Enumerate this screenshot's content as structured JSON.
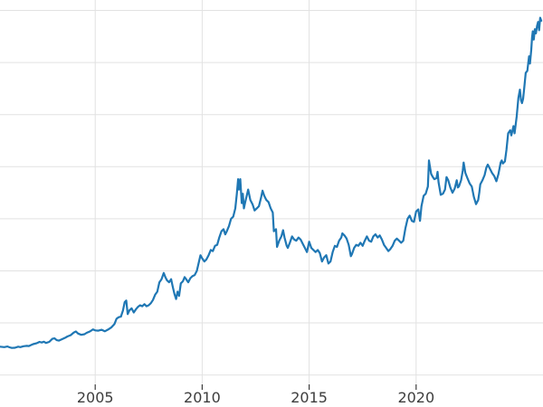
{
  "chart_data": {
    "type": "line",
    "title": "",
    "xlabel": "",
    "ylabel": "",
    "legend": "none",
    "grid": true,
    "line_color": "#1f77b4",
    "grid_color": "#e2e2e2",
    "tick_color": "#3d3d3d",
    "background_color": "#ffffff",
    "xlim": [
      2000.55,
      2025.93
    ],
    "ylim": [
      -90,
      3600
    ],
    "y_gridlines": [
      0,
      500,
      1000,
      1500,
      2000,
      2500,
      3000,
      3500
    ],
    "x_ticks": [
      {
        "label": "2005",
        "value": 2005
      },
      {
        "label": "2010",
        "value": 2010
      },
      {
        "label": "2015",
        "value": 2015
      },
      {
        "label": "2020",
        "value": 2020
      }
    ],
    "points": [
      [
        2000.55,
        272
      ],
      [
        2000.75,
        268
      ],
      [
        2000.9,
        274
      ],
      [
        2001.0,
        266
      ],
      [
        2001.1,
        260
      ],
      [
        2001.25,
        262
      ],
      [
        2001.4,
        272
      ],
      [
        2001.5,
        268
      ],
      [
        2001.65,
        276
      ],
      [
        2001.8,
        280
      ],
      [
        2001.9,
        278
      ],
      [
        2002.0,
        288
      ],
      [
        2002.1,
        296
      ],
      [
        2002.25,
        304
      ],
      [
        2002.4,
        318
      ],
      [
        2002.5,
        312
      ],
      [
        2002.6,
        320
      ],
      [
        2002.7,
        308
      ],
      [
        2002.85,
        318
      ],
      [
        2003.0,
        348
      ],
      [
        2003.1,
        352
      ],
      [
        2003.2,
        335
      ],
      [
        2003.3,
        330
      ],
      [
        2003.45,
        344
      ],
      [
        2003.6,
        358
      ],
      [
        2003.7,
        370
      ],
      [
        2003.85,
        382
      ],
      [
        2004.0,
        408
      ],
      [
        2004.1,
        418
      ],
      [
        2004.2,
        398
      ],
      [
        2004.35,
        386
      ],
      [
        2004.5,
        392
      ],
      [
        2004.6,
        405
      ],
      [
        2004.75,
        418
      ],
      [
        2004.9,
        438
      ],
      [
        2005.0,
        428
      ],
      [
        2005.15,
        426
      ],
      [
        2005.3,
        434
      ],
      [
        2005.45,
        420
      ],
      [
        2005.6,
        436
      ],
      [
        2005.75,
        456
      ],
      [
        2005.9,
        490
      ],
      [
        2006.0,
        540
      ],
      [
        2006.1,
        555
      ],
      [
        2006.2,
        560
      ],
      [
        2006.3,
        620
      ],
      [
        2006.38,
        700
      ],
      [
        2006.45,
        715
      ],
      [
        2006.52,
        585
      ],
      [
        2006.6,
        620
      ],
      [
        2006.7,
        640
      ],
      [
        2006.8,
        600
      ],
      [
        2006.9,
        630
      ],
      [
        2007.0,
        655
      ],
      [
        2007.1,
        670
      ],
      [
        2007.2,
        660
      ],
      [
        2007.3,
        680
      ],
      [
        2007.4,
        660
      ],
      [
        2007.5,
        670
      ],
      [
        2007.6,
        690
      ],
      [
        2007.7,
        720
      ],
      [
        2007.8,
        770
      ],
      [
        2007.9,
        800
      ],
      [
        2008.0,
        890
      ],
      [
        2008.1,
        920
      ],
      [
        2008.2,
        980
      ],
      [
        2008.28,
        940
      ],
      [
        2008.35,
        910
      ],
      [
        2008.45,
        890
      ],
      [
        2008.55,
        920
      ],
      [
        2008.62,
        850
      ],
      [
        2008.7,
        780
      ],
      [
        2008.78,
        730
      ],
      [
        2008.85,
        800
      ],
      [
        2008.92,
        760
      ],
      [
        2009.0,
        880
      ],
      [
        2009.1,
        900
      ],
      [
        2009.18,
        940
      ],
      [
        2009.25,
        920
      ],
      [
        2009.35,
        890
      ],
      [
        2009.45,
        930
      ],
      [
        2009.55,
        950
      ],
      [
        2009.65,
        960
      ],
      [
        2009.75,
        1000
      ],
      [
        2009.85,
        1090
      ],
      [
        2009.92,
        1150
      ],
      [
        2010.0,
        1120
      ],
      [
        2010.1,
        1090
      ],
      [
        2010.2,
        1110
      ],
      [
        2010.3,
        1150
      ],
      [
        2010.4,
        1200
      ],
      [
        2010.5,
        1190
      ],
      [
        2010.6,
        1240
      ],
      [
        2010.7,
        1250
      ],
      [
        2010.8,
        1320
      ],
      [
        2010.9,
        1380
      ],
      [
        2011.0,
        1400
      ],
      [
        2011.08,
        1350
      ],
      [
        2011.15,
        1380
      ],
      [
        2011.25,
        1430
      ],
      [
        2011.35,
        1500
      ],
      [
        2011.45,
        1520
      ],
      [
        2011.55,
        1600
      ],
      [
        2011.62,
        1740
      ],
      [
        2011.68,
        1880
      ],
      [
        2011.72,
        1780
      ],
      [
        2011.78,
        1880
      ],
      [
        2011.85,
        1650
      ],
      [
        2011.9,
        1740
      ],
      [
        2011.95,
        1600
      ],
      [
        2012.0,
        1650
      ],
      [
        2012.08,
        1720
      ],
      [
        2012.15,
        1780
      ],
      [
        2012.25,
        1680
      ],
      [
        2012.35,
        1640
      ],
      [
        2012.45,
        1580
      ],
      [
        2012.55,
        1600
      ],
      [
        2012.65,
        1620
      ],
      [
        2012.75,
        1700
      ],
      [
        2012.82,
        1770
      ],
      [
        2012.9,
        1720
      ],
      [
        2013.0,
        1680
      ],
      [
        2013.1,
        1660
      ],
      [
        2013.2,
        1600
      ],
      [
        2013.3,
        1560
      ],
      [
        2013.35,
        1380
      ],
      [
        2013.45,
        1400
      ],
      [
        2013.5,
        1230
      ],
      [
        2013.6,
        1290
      ],
      [
        2013.7,
        1330
      ],
      [
        2013.78,
        1390
      ],
      [
        2013.85,
        1320
      ],
      [
        2013.95,
        1240
      ],
      [
        2014.0,
        1220
      ],
      [
        2014.1,
        1270
      ],
      [
        2014.2,
        1330
      ],
      [
        2014.3,
        1300
      ],
      [
        2014.4,
        1290
      ],
      [
        2014.5,
        1320
      ],
      [
        2014.6,
        1300
      ],
      [
        2014.7,
        1260
      ],
      [
        2014.8,
        1220
      ],
      [
        2014.9,
        1180
      ],
      [
        2015.0,
        1280
      ],
      [
        2015.1,
        1220
      ],
      [
        2015.2,
        1200
      ],
      [
        2015.3,
        1180
      ],
      [
        2015.4,
        1200
      ],
      [
        2015.5,
        1170
      ],
      [
        2015.6,
        1090
      ],
      [
        2015.7,
        1130
      ],
      [
        2015.8,
        1150
      ],
      [
        2015.9,
        1070
      ],
      [
        2016.0,
        1090
      ],
      [
        2016.1,
        1180
      ],
      [
        2016.2,
        1240
      ],
      [
        2016.3,
        1230
      ],
      [
        2016.4,
        1290
      ],
      [
        2016.5,
        1320
      ],
      [
        2016.55,
        1360
      ],
      [
        2016.65,
        1340
      ],
      [
        2016.75,
        1310
      ],
      [
        2016.85,
        1250
      ],
      [
        2016.95,
        1140
      ],
      [
        2017.0,
        1160
      ],
      [
        2017.1,
        1220
      ],
      [
        2017.2,
        1250
      ],
      [
        2017.3,
        1240
      ],
      [
        2017.4,
        1270
      ],
      [
        2017.5,
        1240
      ],
      [
        2017.6,
        1290
      ],
      [
        2017.7,
        1330
      ],
      [
        2017.8,
        1290
      ],
      [
        2017.9,
        1280
      ],
      [
        2018.0,
        1330
      ],
      [
        2018.1,
        1350
      ],
      [
        2018.2,
        1320
      ],
      [
        2018.3,
        1340
      ],
      [
        2018.4,
        1300
      ],
      [
        2018.5,
        1250
      ],
      [
        2018.6,
        1220
      ],
      [
        2018.7,
        1190
      ],
      [
        2018.8,
        1210
      ],
      [
        2018.9,
        1240
      ],
      [
        2019.0,
        1290
      ],
      [
        2019.1,
        1310
      ],
      [
        2019.2,
        1290
      ],
      [
        2019.3,
        1270
      ],
      [
        2019.4,
        1290
      ],
      [
        2019.5,
        1410
      ],
      [
        2019.6,
        1500
      ],
      [
        2019.7,
        1530
      ],
      [
        2019.8,
        1480
      ],
      [
        2019.9,
        1470
      ],
      [
        2020.0,
        1570
      ],
      [
        2020.1,
        1590
      ],
      [
        2020.18,
        1480
      ],
      [
        2020.25,
        1620
      ],
      [
        2020.35,
        1720
      ],
      [
        2020.45,
        1740
      ],
      [
        2020.55,
        1810
      ],
      [
        2020.6,
        2060
      ],
      [
        2020.63,
        2020
      ],
      [
        2020.7,
        1930
      ],
      [
        2020.78,
        1900
      ],
      [
        2020.85,
        1880
      ],
      [
        2020.95,
        1890
      ],
      [
        2021.0,
        1950
      ],
      [
        2021.05,
        1850
      ],
      [
        2021.15,
        1730
      ],
      [
        2021.25,
        1740
      ],
      [
        2021.35,
        1780
      ],
      [
        2021.42,
        1900
      ],
      [
        2021.5,
        1870
      ],
      [
        2021.6,
        1800
      ],
      [
        2021.7,
        1750
      ],
      [
        2021.8,
        1790
      ],
      [
        2021.9,
        1870
      ],
      [
        2021.95,
        1800
      ],
      [
        2022.0,
        1810
      ],
      [
        2022.1,
        1870
      ],
      [
        2022.18,
        1960
      ],
      [
        2022.22,
        2040
      ],
      [
        2022.3,
        1940
      ],
      [
        2022.4,
        1890
      ],
      [
        2022.5,
        1840
      ],
      [
        2022.6,
        1810
      ],
      [
        2022.7,
        1710
      ],
      [
        2022.8,
        1640
      ],
      [
        2022.9,
        1680
      ],
      [
        2022.95,
        1750
      ],
      [
        2023.0,
        1830
      ],
      [
        2023.1,
        1870
      ],
      [
        2023.2,
        1920
      ],
      [
        2023.28,
        1990
      ],
      [
        2023.35,
        2020
      ],
      [
        2023.45,
        1980
      ],
      [
        2023.55,
        1940
      ],
      [
        2023.65,
        1910
      ],
      [
        2023.75,
        1860
      ],
      [
        2023.85,
        1930
      ],
      [
        2023.95,
        2040
      ],
      [
        2024.0,
        2060
      ],
      [
        2024.05,
        2030
      ],
      [
        2024.15,
        2050
      ],
      [
        2024.22,
        2160
      ],
      [
        2024.3,
        2320
      ],
      [
        2024.4,
        2350
      ],
      [
        2024.45,
        2300
      ],
      [
        2024.55,
        2390
      ],
      [
        2024.6,
        2320
      ],
      [
        2024.7,
        2480
      ],
      [
        2024.78,
        2660
      ],
      [
        2024.85,
        2740
      ],
      [
        2024.9,
        2640
      ],
      [
        2024.95,
        2610
      ],
      [
        2025.0,
        2650
      ],
      [
        2025.05,
        2750
      ],
      [
        2025.12,
        2900
      ],
      [
        2025.2,
        2920
      ],
      [
        2025.28,
        3060
      ],
      [
        2025.32,
        2990
      ],
      [
        2025.38,
        3120
      ],
      [
        2025.42,
        3240
      ],
      [
        2025.45,
        3300
      ],
      [
        2025.5,
        3220
      ],
      [
        2025.55,
        3320
      ],
      [
        2025.6,
        3280
      ],
      [
        2025.65,
        3350
      ],
      [
        2025.7,
        3390
      ],
      [
        2025.75,
        3310
      ],
      [
        2025.8,
        3430
      ],
      [
        2025.85,
        3400
      ]
    ]
  }
}
